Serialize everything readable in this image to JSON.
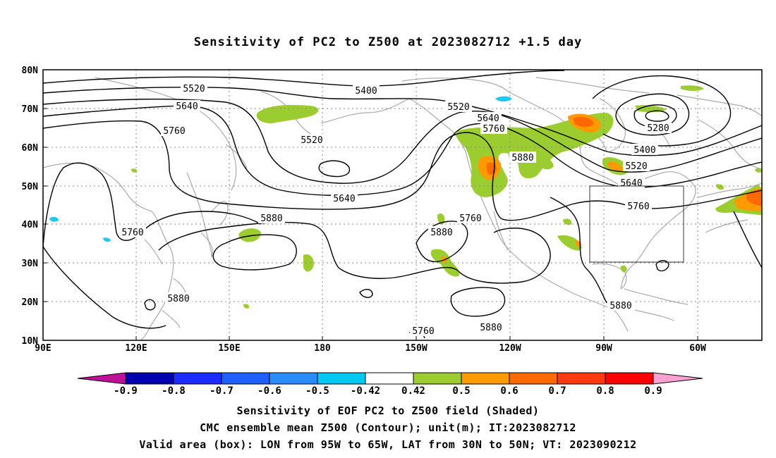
{
  "title": "Sensitivity of PC2 to Z500 at 2023082712 +1.5 day",
  "map": {
    "lon_labels": [
      "90E",
      "120E",
      "150E",
      "180",
      "150W",
      "120W",
      "90W",
      "60W"
    ],
    "lat_labels": [
      "80N",
      "70N",
      "60N",
      "50N",
      "40N",
      "30N",
      "20N",
      "10N"
    ],
    "contour_labels": [
      {
        "text": "5400"
      },
      {
        "text": "5520"
      },
      {
        "text": "5640"
      },
      {
        "text": "5760"
      },
      {
        "text": "5520"
      },
      {
        "text": "5640"
      },
      {
        "text": "5760"
      },
      {
        "text": "5880"
      },
      {
        "text": "5520"
      },
      {
        "text": "5640"
      },
      {
        "text": "5760"
      },
      {
        "text": "5880"
      },
      {
        "text": "5280"
      },
      {
        "text": "5400"
      },
      {
        "text": "5520"
      },
      {
        "text": "5640"
      },
      {
        "text": "5760"
      },
      {
        "text": "5880"
      },
      {
        "text": "5880"
      },
      {
        "text": "5880"
      },
      {
        "text": "5880"
      },
      {
        "text": "5760"
      },
      {
        "text": "5760"
      }
    ],
    "valid_box": {
      "lon_from": "95W",
      "lon_to": "65W",
      "lat_from": "30N",
      "lat_to": "50N"
    }
  },
  "colorbar": {
    "colors": [
      "#c0109a",
      "#0000b0",
      "#1a2cff",
      "#1f5fff",
      "#2a8cff",
      "#00c8f0",
      "#ffffff",
      "#9bcc30",
      "#ff9a00",
      "#ff6a00",
      "#ff3a10",
      "#ff0000",
      "#f7a2d0"
    ],
    "labels": [
      "-0.9",
      "-0.8",
      "-0.7",
      "-0.6",
      "-0.5",
      "-0.42",
      "0.42",
      "0.5",
      "0.6",
      "0.7",
      "0.8",
      "0.9"
    ]
  },
  "shading_colors": {
    "pos_042": "#9bcc30",
    "pos_05": "#ff9a00",
    "pos_06": "#ff6a00",
    "neg_05": "#1ec8f0"
  },
  "footer": {
    "line1": "Sensitivity of EOF PC2 to Z500 field (Shaded)",
    "line2": "CMC ensemble mean Z500 (Contour); unit(m); IT:2023082712",
    "line3": "Valid area (box): LON from 95W to 65W, LAT from 30N to 50N; VT: 2023090212"
  }
}
